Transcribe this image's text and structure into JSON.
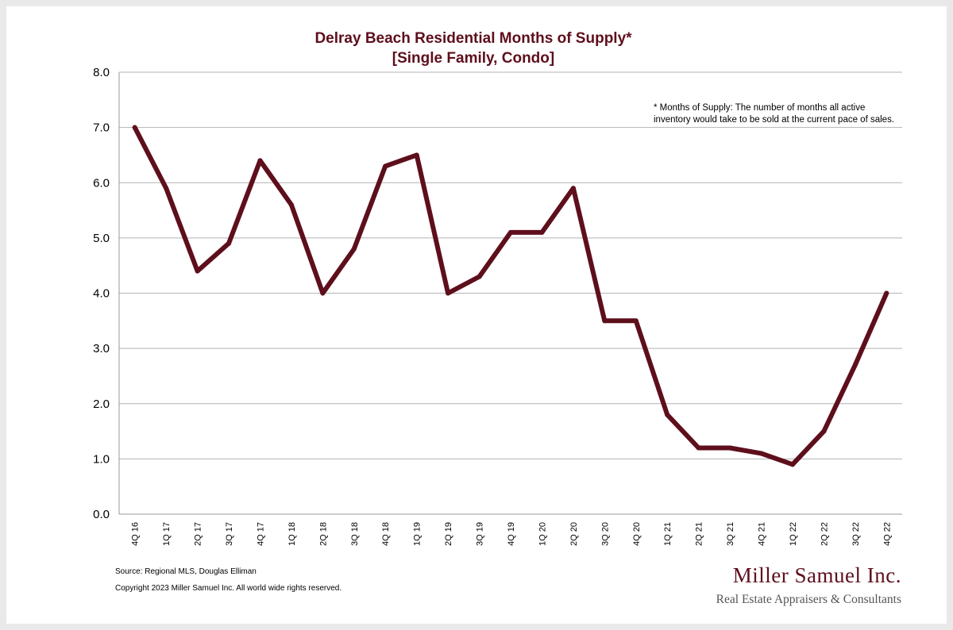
{
  "chart_data": {
    "type": "line",
    "title": "Delray Beach Residential Months of Supply*",
    "subtitle": "[Single Family, Condo]",
    "xlabel": "",
    "ylabel": "",
    "ylim": [
      0,
      8
    ],
    "yticks": [
      "0.0",
      "1.0",
      "2.0",
      "3.0",
      "4.0",
      "5.0",
      "6.0",
      "7.0",
      "8.0"
    ],
    "grid": true,
    "categories": [
      "4Q 16",
      "1Q 17",
      "2Q 17",
      "3Q 17",
      "4Q 17",
      "1Q 18",
      "2Q 18",
      "3Q 18",
      "4Q 18",
      "1Q 19",
      "2Q 19",
      "3Q 19",
      "4Q 19",
      "1Q 20",
      "2Q 20",
      "3Q 20",
      "4Q 20",
      "1Q 21",
      "2Q 21",
      "3Q 21",
      "4Q 21",
      "1Q 22",
      "2Q 22",
      "3Q 22",
      "4Q 22"
    ],
    "series": [
      {
        "color": "#5e0f1c",
        "values": [
          7.0,
          5.9,
          4.4,
          4.9,
          6.4,
          5.6,
          4.0,
          4.8,
          6.3,
          6.5,
          4.0,
          4.3,
          5.1,
          5.1,
          5.9,
          3.5,
          3.5,
          1.8,
          1.2,
          1.2,
          1.1,
          0.9,
          1.5,
          2.7,
          4.0
        ]
      }
    ],
    "annotation": {
      "line1": "* Months of Supply: The number of months all active",
      "line2": "inventory would take to be sold at the current pace of sales."
    }
  },
  "footer": {
    "source": "Source: Regional MLS, Douglas Elliman",
    "copyright": "Copyright 2023 Miller Samuel Inc.  All world wide rights reserved."
  },
  "logo": {
    "name": "Miller Samuel Inc.",
    "tagline": "Real Estate Appraisers & Consultants"
  }
}
